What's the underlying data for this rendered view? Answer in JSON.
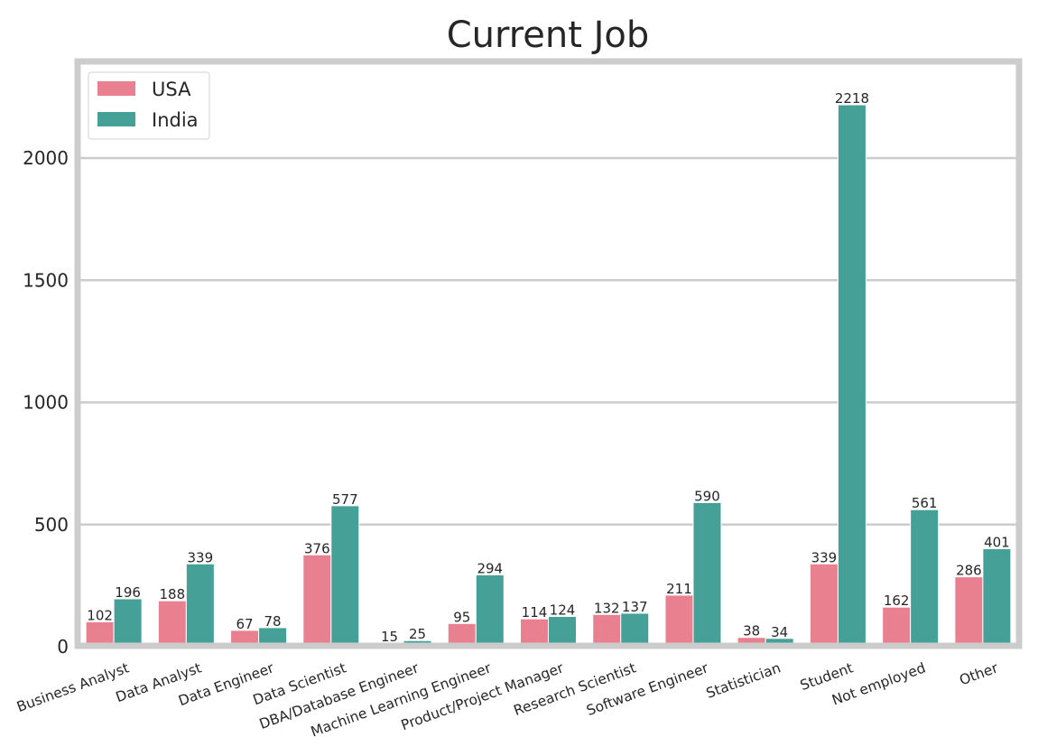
{
  "chart_data": {
    "type": "bar",
    "title": "Current Job",
    "xlabel": "",
    "ylabel": "",
    "categories": [
      "Business Analyst",
      "Data Analyst",
      "Data Engineer",
      "Data Scientist",
      "DBA/Database Engineer",
      "Machine Learning Engineer",
      "Product/Project Manager",
      "Research Scientist",
      "Software Engineer",
      "Statistician",
      "Student",
      "Not employed",
      "Other"
    ],
    "series": [
      {
        "name": "USA",
        "color": "#e8808f",
        "values": [
          102,
          188,
          67,
          376,
          15,
          95,
          114,
          132,
          211,
          38,
          339,
          162,
          286
        ]
      },
      {
        "name": "India",
        "color": "#45a098",
        "values": [
          196,
          339,
          78,
          577,
          25,
          294,
          124,
          137,
          590,
          34,
          2218,
          561,
          401
        ]
      }
    ],
    "ylim": [
      0,
      2400
    ],
    "yticks": [
      0,
      500,
      1000,
      1500,
      2000
    ],
    "grid": "horizontal",
    "legend_position": "top-left",
    "frame_color": "#cccccc",
    "grid_color": "#cccccc"
  }
}
